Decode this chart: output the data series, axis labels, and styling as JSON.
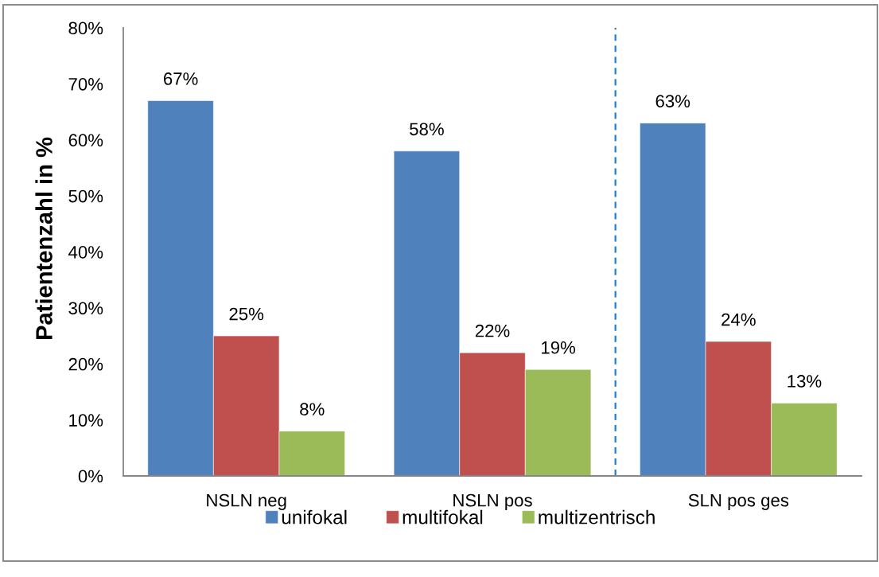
{
  "chart_data": {
    "type": "bar",
    "ylabel": "Patientenzahl in %",
    "categories": [
      "NSLN neg",
      "NSLN pos",
      "SLN pos ges"
    ],
    "series": [
      {
        "name": "unifokal",
        "color": "#4f81bd",
        "values": [
          67,
          58,
          63
        ],
        "value_labels": [
          "67%",
          "58%",
          "63%"
        ]
      },
      {
        "name": "multifokal",
        "color": "#c0504d",
        "values": [
          25,
          22,
          24
        ],
        "value_labels": [
          "25%",
          "22%",
          "24%"
        ]
      },
      {
        "name": "multizentrisch",
        "color": "#9bbb59",
        "values": [
          8,
          19,
          13
        ],
        "value_labels": [
          "8%",
          "19%",
          "13%"
        ]
      }
    ],
    "ylim": [
      0,
      80
    ],
    "yticks": [
      {
        "value": 0,
        "label": "0%"
      },
      {
        "value": 10,
        "label": "10%"
      },
      {
        "value": 20,
        "label": "20%"
      },
      {
        "value": 30,
        "label": "30%"
      },
      {
        "value": 40,
        "label": "40%"
      },
      {
        "value": 50,
        "label": "50%"
      },
      {
        "value": 60,
        "label": "60%"
      },
      {
        "value": 70,
        "label": "70%"
      },
      {
        "value": 80,
        "label": "80%"
      }
    ],
    "grid": false,
    "legend": "bottom"
  }
}
